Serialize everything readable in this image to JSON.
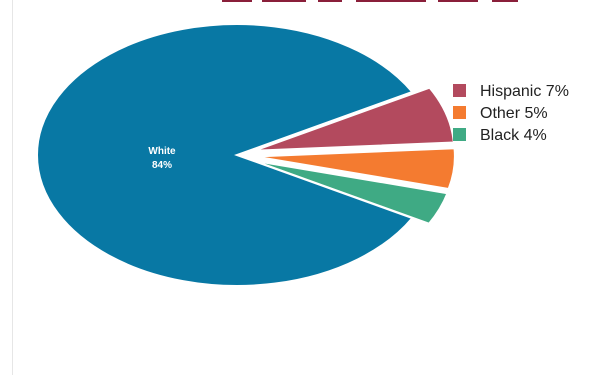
{
  "chart_data": {
    "type": "pie",
    "title": "",
    "slices": [
      {
        "label": "White",
        "value": 84,
        "display": "84%",
        "color": "#0878A4",
        "exploded": false
      },
      {
        "label": "Hispanic",
        "value": 7,
        "display": "7%",
        "color": "#B34A5E",
        "exploded": true
      },
      {
        "label": "Other",
        "value": 5,
        "display": "5%",
        "color": "#F47B30",
        "exploded": true
      },
      {
        "label": "Black",
        "value": 4,
        "display": "4%",
        "color": "#3FAA84",
        "exploded": true
      }
    ],
    "legend": {
      "placement": "right",
      "entries": [
        "Hispanic 7%",
        "Other 5%",
        "Black 4%"
      ]
    },
    "slice_labels": {
      "white_name": "White",
      "white_value": "84%"
    }
  }
}
